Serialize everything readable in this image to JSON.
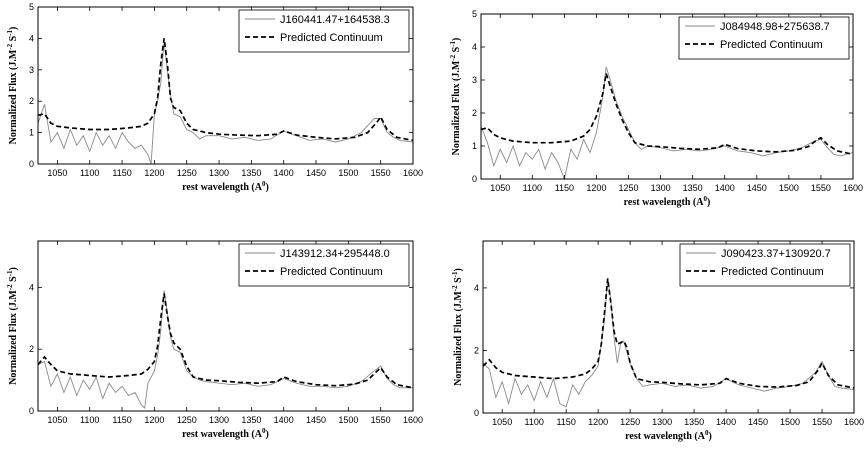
{
  "chart_data": [
    {
      "type": "line",
      "title": "",
      "xlabel": "rest wavelength (A^0)",
      "ylabel": "Normalized Flux (J.M^-2 S^-1)",
      "xlim": [
        1020,
        1600
      ],
      "ylim": [
        0,
        5
      ],
      "xticks": [
        1050,
        1100,
        1150,
        1200,
        1250,
        1300,
        1350,
        1400,
        1450,
        1500,
        1550,
        1600
      ],
      "yticks": [
        0,
        1,
        2,
        3,
        4,
        5
      ],
      "legend_position": "top-right",
      "series": [
        {
          "name": "J160441.47+164538.3",
          "style": "solid-gray",
          "x": [
            1020,
            1030,
            1040,
            1050,
            1060,
            1070,
            1080,
            1090,
            1100,
            1110,
            1120,
            1130,
            1140,
            1150,
            1160,
            1170,
            1180,
            1190,
            1195,
            1200,
            1205,
            1210,
            1215,
            1220,
            1225,
            1230,
            1240,
            1250,
            1260,
            1270,
            1280,
            1300,
            1320,
            1340,
            1360,
            1380,
            1400,
            1420,
            1440,
            1460,
            1480,
            1500,
            1520,
            1540,
            1550,
            1560,
            1570,
            1580,
            1600
          ],
          "y": [
            1.3,
            1.9,
            0.7,
            1.0,
            0.5,
            1.1,
            0.6,
            0.9,
            0.4,
            1.0,
            0.6,
            0.9,
            0.5,
            1.0,
            0.7,
            0.5,
            0.6,
            0.3,
            0.0,
            1.6,
            2.0,
            2.6,
            3.9,
            3.0,
            2.2,
            1.6,
            1.5,
            1.1,
            1.0,
            0.8,
            0.9,
            0.9,
            0.8,
            0.85,
            0.75,
            0.8,
            1.05,
            0.9,
            0.75,
            0.8,
            0.7,
            0.8,
            1.0,
            1.45,
            1.45,
            1.0,
            0.85,
            0.75,
            0.7
          ]
        },
        {
          "name": "Predicted Continuum",
          "style": "dashed-black",
          "x": [
            1020,
            1030,
            1040,
            1050,
            1070,
            1100,
            1130,
            1160,
            1180,
            1190,
            1200,
            1205,
            1210,
            1215,
            1220,
            1225,
            1230,
            1240,
            1250,
            1260,
            1280,
            1300,
            1330,
            1360,
            1390,
            1400,
            1420,
            1450,
            1480,
            1510,
            1530,
            1545,
            1550,
            1560,
            1575,
            1600
          ],
          "y": [
            1.55,
            1.6,
            1.3,
            1.2,
            1.15,
            1.1,
            1.1,
            1.15,
            1.2,
            1.3,
            1.6,
            2.1,
            3.2,
            4.0,
            3.2,
            2.1,
            1.8,
            1.7,
            1.3,
            1.1,
            1.0,
            0.95,
            0.92,
            0.9,
            0.95,
            1.05,
            0.92,
            0.85,
            0.8,
            0.85,
            1.0,
            1.35,
            1.5,
            1.1,
            0.85,
            0.75
          ]
        }
      ]
    },
    {
      "type": "line",
      "title": "",
      "xlabel": "rest wavelength (A^0)",
      "ylabel": "Normalized Flux (J.M^-2 S^-1)",
      "xlim": [
        1020,
        1600
      ],
      "ylim": [
        0,
        5
      ],
      "xticks": [
        1050,
        1100,
        1150,
        1200,
        1250,
        1300,
        1350,
        1400,
        1450,
        1500,
        1550,
        1600
      ],
      "yticks": [
        0,
        1,
        2,
        3,
        4,
        5
      ],
      "legend_position": "top-right",
      "series": [
        {
          "name": "J084948.98+275638.7",
          "style": "solid-gray",
          "x": [
            1020,
            1030,
            1040,
            1050,
            1060,
            1070,
            1080,
            1090,
            1100,
            1110,
            1120,
            1130,
            1140,
            1150,
            1160,
            1170,
            1180,
            1190,
            1200,
            1210,
            1215,
            1220,
            1230,
            1240,
            1250,
            1260,
            1270,
            1280,
            1300,
            1320,
            1340,
            1360,
            1380,
            1400,
            1420,
            1440,
            1460,
            1480,
            1500,
            1520,
            1540,
            1550,
            1560,
            1570,
            1580,
            1600
          ],
          "y": [
            1.6,
            1.1,
            0.4,
            0.9,
            0.5,
            1.0,
            0.4,
            0.8,
            0.6,
            0.9,
            0.3,
            0.8,
            0.5,
            0.0,
            0.9,
            0.6,
            1.2,
            0.8,
            1.4,
            2.5,
            3.4,
            3.1,
            2.4,
            1.9,
            1.5,
            1.1,
            0.9,
            1.0,
            0.95,
            0.85,
            0.9,
            0.85,
            0.9,
            1.0,
            0.85,
            0.8,
            0.7,
            0.8,
            0.85,
            0.95,
            1.15,
            1.2,
            0.95,
            0.75,
            0.7,
            0.8
          ]
        },
        {
          "name": "Predicted Continuum",
          "style": "dashed-black",
          "x": [
            1020,
            1030,
            1040,
            1050,
            1070,
            1100,
            1130,
            1160,
            1180,
            1190,
            1200,
            1210,
            1215,
            1220,
            1225,
            1230,
            1240,
            1250,
            1260,
            1280,
            1300,
            1330,
            1360,
            1390,
            1400,
            1420,
            1450,
            1480,
            1510,
            1530,
            1545,
            1550,
            1560,
            1575,
            1600
          ],
          "y": [
            1.5,
            1.55,
            1.35,
            1.25,
            1.15,
            1.1,
            1.1,
            1.15,
            1.3,
            1.5,
            1.9,
            2.6,
            3.2,
            2.9,
            2.6,
            2.3,
            1.8,
            1.4,
            1.1,
            1.0,
            0.98,
            0.93,
            0.9,
            0.95,
            1.05,
            0.92,
            0.85,
            0.82,
            0.87,
            0.98,
            1.2,
            1.25,
            1.05,
            0.85,
            0.75
          ]
        }
      ]
    },
    {
      "type": "line",
      "title": "",
      "xlabel": "rest wavelength (A^0)",
      "ylabel": "Normalized Flux (J.M^-2 S^-1)",
      "xlim": [
        1020,
        1600
      ],
      "ylim": [
        0,
        5.5
      ],
      "xticks": [
        1050,
        1100,
        1150,
        1200,
        1250,
        1300,
        1350,
        1400,
        1450,
        1500,
        1550,
        1600
      ],
      "yticks": [
        0,
        2,
        4
      ],
      "legend_position": "top-right",
      "series": [
        {
          "name": "J143912.34+295448.0",
          "style": "solid-gray",
          "x": [
            1020,
            1030,
            1040,
            1050,
            1060,
            1070,
            1080,
            1090,
            1100,
            1110,
            1120,
            1130,
            1140,
            1150,
            1160,
            1170,
            1180,
            1185,
            1190,
            1200,
            1205,
            1210,
            1215,
            1220,
            1225,
            1230,
            1240,
            1250,
            1260,
            1270,
            1280,
            1300,
            1320,
            1340,
            1360,
            1380,
            1400,
            1420,
            1440,
            1460,
            1480,
            1500,
            1520,
            1540,
            1550,
            1560,
            1570,
            1580,
            1600
          ],
          "y": [
            1.5,
            1.6,
            0.8,
            1.2,
            0.6,
            1.1,
            0.5,
            1.0,
            0.7,
            1.1,
            0.4,
            0.9,
            0.6,
            0.8,
            0.5,
            0.6,
            0.2,
            0.1,
            0.9,
            1.3,
            1.8,
            2.6,
            3.9,
            3.2,
            2.4,
            2.0,
            1.9,
            1.3,
            1.1,
            1.0,
            0.95,
            0.9,
            0.85,
            0.9,
            0.8,
            0.85,
            1.05,
            0.9,
            0.8,
            0.8,
            0.75,
            0.8,
            0.95,
            1.3,
            1.45,
            1.05,
            0.85,
            0.75,
            0.75
          ]
        },
        {
          "name": "Predicted Continuum",
          "style": "dashed-black",
          "x": [
            1020,
            1030,
            1040,
            1050,
            1070,
            1100,
            1130,
            1160,
            1180,
            1190,
            1200,
            1205,
            1210,
            1215,
            1220,
            1225,
            1230,
            1240,
            1250,
            1260,
            1280,
            1300,
            1330,
            1360,
            1390,
            1400,
            1420,
            1450,
            1480,
            1510,
            1530,
            1545,
            1550,
            1560,
            1575,
            1600
          ],
          "y": [
            1.5,
            1.75,
            1.5,
            1.3,
            1.2,
            1.15,
            1.1,
            1.15,
            1.2,
            1.35,
            1.6,
            2.1,
            3.0,
            3.8,
            3.1,
            2.5,
            2.2,
            2.0,
            1.45,
            1.1,
            1.0,
            0.98,
            0.93,
            0.9,
            0.95,
            1.1,
            0.95,
            0.85,
            0.82,
            0.87,
            1.0,
            1.3,
            1.4,
            1.1,
            0.85,
            0.75
          ]
        }
      ]
    },
    {
      "type": "line",
      "title": "",
      "xlabel": "rest wavelength (A^0)",
      "ylabel": "Normalized Flux (J.M^-2 S^-1)",
      "xlim": [
        1020,
        1600
      ],
      "ylim": [
        0,
        5.5
      ],
      "xticks": [
        1050,
        1100,
        1150,
        1200,
        1250,
        1300,
        1350,
        1400,
        1450,
        1500,
        1550,
        1600
      ],
      "yticks": [
        0,
        2,
        4
      ],
      "legend_position": "top-right",
      "series": [
        {
          "name": "J090423.37+130920.7",
          "style": "solid-gray",
          "x": [
            1020,
            1030,
            1040,
            1050,
            1060,
            1070,
            1080,
            1090,
            1100,
            1110,
            1120,
            1130,
            1140,
            1150,
            1160,
            1170,
            1180,
            1190,
            1200,
            1205,
            1210,
            1215,
            1220,
            1225,
            1230,
            1235,
            1240,
            1250,
            1260,
            1270,
            1280,
            1300,
            1320,
            1340,
            1360,
            1380,
            1400,
            1420,
            1440,
            1460,
            1480,
            1500,
            1520,
            1540,
            1550,
            1560,
            1570,
            1580,
            1600
          ],
          "y": [
            1.6,
            1.4,
            0.5,
            1.0,
            0.3,
            1.1,
            0.6,
            0.9,
            0.4,
            1.0,
            0.5,
            1.1,
            0.3,
            0.2,
            0.9,
            0.6,
            1.0,
            1.2,
            1.5,
            2.2,
            3.0,
            4.3,
            3.6,
            2.4,
            1.6,
            2.2,
            2.3,
            1.6,
            1.1,
            0.85,
            0.9,
            0.95,
            0.85,
            0.9,
            0.8,
            0.85,
            1.1,
            0.9,
            0.8,
            0.7,
            0.8,
            0.85,
            0.95,
            1.3,
            1.65,
            1.2,
            0.85,
            0.8,
            0.75
          ]
        },
        {
          "name": "Predicted Continuum",
          "style": "dashed-black",
          "x": [
            1020,
            1030,
            1040,
            1050,
            1070,
            1100,
            1130,
            1160,
            1180,
            1190,
            1200,
            1205,
            1210,
            1215,
            1220,
            1225,
            1230,
            1240,
            1245,
            1250,
            1260,
            1280,
            1300,
            1330,
            1360,
            1390,
            1400,
            1420,
            1450,
            1480,
            1510,
            1530,
            1545,
            1550,
            1560,
            1575,
            1600
          ],
          "y": [
            1.5,
            1.7,
            1.45,
            1.3,
            1.2,
            1.15,
            1.1,
            1.15,
            1.25,
            1.4,
            1.65,
            2.2,
            3.2,
            4.3,
            3.5,
            2.6,
            2.2,
            2.3,
            2.1,
            1.6,
            1.1,
            1.0,
            0.98,
            0.93,
            0.9,
            0.95,
            1.1,
            0.95,
            0.85,
            0.83,
            0.88,
            1.0,
            1.4,
            1.6,
            1.2,
            0.9,
            0.8
          ]
        }
      ]
    }
  ]
}
